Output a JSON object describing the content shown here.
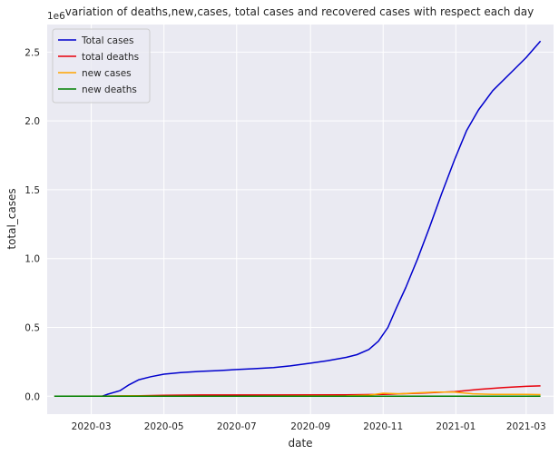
{
  "chart_data": {
    "type": "line",
    "title": "variation of deaths,new,cases, total cases and recovered cases with respect each day",
    "xlabel": "date",
    "ylabel": "total_cases",
    "y_offset_text": "1e6",
    "ylim": [
      -130000,
      2700000
    ],
    "xlim": [
      "2020-01-24",
      "2021-03-24"
    ],
    "x_ticks": [
      "2020-03",
      "2020-05",
      "2020-07",
      "2020-09",
      "2020-11",
      "2021-01",
      "2021-03"
    ],
    "y_ticks": [
      0,
      500000,
      1000000,
      1500000,
      2000000,
      2500000
    ],
    "y_tick_labels": [
      "0.0",
      "0.5",
      "1.0",
      "1.5",
      "2.0",
      "2.5"
    ],
    "grid": true,
    "legend_position": "top-left",
    "series": [
      {
        "name": "Total cases",
        "color": "#0000cd",
        "style": "solid",
        "points": [
          [
            "2020-01-30",
            1
          ],
          [
            "2020-02-15",
            3
          ],
          [
            "2020-03-01",
            3
          ],
          [
            "2020-03-10",
            50
          ],
          [
            "2020-03-15",
            15000
          ],
          [
            "2020-03-25",
            40000
          ],
          [
            "2020-04-01",
            80000
          ],
          [
            "2020-04-10",
            120000
          ],
          [
            "2020-04-20",
            142000
          ],
          [
            "2020-05-01",
            160000
          ],
          [
            "2020-05-15",
            172000
          ],
          [
            "2020-06-01",
            181000
          ],
          [
            "2020-06-15",
            186000
          ],
          [
            "2020-07-01",
            194000
          ],
          [
            "2020-07-15",
            200000
          ],
          [
            "2020-08-01",
            208000
          ],
          [
            "2020-08-15",
            220000
          ],
          [
            "2020-09-01",
            240000
          ],
          [
            "2020-09-15",
            258000
          ],
          [
            "2020-10-01",
            282000
          ],
          [
            "2020-10-10",
            302000
          ],
          [
            "2020-10-20",
            340000
          ],
          [
            "2020-10-28",
            400000
          ],
          [
            "2020-11-05",
            500000
          ],
          [
            "2020-11-12",
            640000
          ],
          [
            "2020-11-20",
            790000
          ],
          [
            "2020-11-30",
            1000000
          ],
          [
            "2020-12-10",
            1230000
          ],
          [
            "2020-12-20",
            1470000
          ],
          [
            "2020-12-31",
            1720000
          ],
          [
            "2021-01-10",
            1930000
          ],
          [
            "2021-01-20",
            2080000
          ],
          [
            "2021-02-01",
            2220000
          ],
          [
            "2021-02-15",
            2340000
          ],
          [
            "2021-03-01",
            2460000
          ],
          [
            "2021-03-13",
            2580000
          ]
        ]
      },
      {
        "name": "total deaths",
        "color": "#e8000b",
        "style": "solid",
        "points": [
          [
            "2020-01-30",
            0
          ],
          [
            "2020-03-10",
            0
          ],
          [
            "2020-04-01",
            2000
          ],
          [
            "2020-05-01",
            7000
          ],
          [
            "2020-06-01",
            9000
          ],
          [
            "2020-08-01",
            9500
          ],
          [
            "2020-10-01",
            10000
          ],
          [
            "2020-11-01",
            13000
          ],
          [
            "2020-12-01",
            22000
          ],
          [
            "2020-12-31",
            33000
          ],
          [
            "2021-01-20",
            50000
          ],
          [
            "2021-02-10",
            63000
          ],
          [
            "2021-03-01",
            72000
          ],
          [
            "2021-03-13",
            75000
          ]
        ]
      },
      {
        "name": "new cases",
        "color": "#ffa500",
        "style": "solid",
        "points": [
          [
            "2020-01-30",
            0
          ],
          [
            "2020-03-15",
            1000
          ],
          [
            "2020-04-01",
            3000
          ],
          [
            "2020-05-01",
            1500
          ],
          [
            "2020-07-01",
            800
          ],
          [
            "2020-10-01",
            2500
          ],
          [
            "2020-10-20",
            8000
          ],
          [
            "2020-11-01",
            22000
          ],
          [
            "2020-11-15",
            18000
          ],
          [
            "2020-12-01",
            25000
          ],
          [
            "2020-12-15",
            30000
          ],
          [
            "2020-12-31",
            30000
          ],
          [
            "2021-01-15",
            18000
          ],
          [
            "2021-02-01",
            14000
          ],
          [
            "2021-03-01",
            13000
          ],
          [
            "2021-03-13",
            12000
          ]
        ]
      },
      {
        "name": "new deaths",
        "color": "#008000",
        "style": "solid",
        "points": [
          [
            "2020-01-30",
            0
          ],
          [
            "2020-04-01",
            100
          ],
          [
            "2020-07-01",
            30
          ],
          [
            "2020-11-01",
            200
          ],
          [
            "2020-12-31",
            500
          ],
          [
            "2021-02-01",
            900
          ],
          [
            "2021-03-13",
            700
          ]
        ]
      }
    ]
  }
}
